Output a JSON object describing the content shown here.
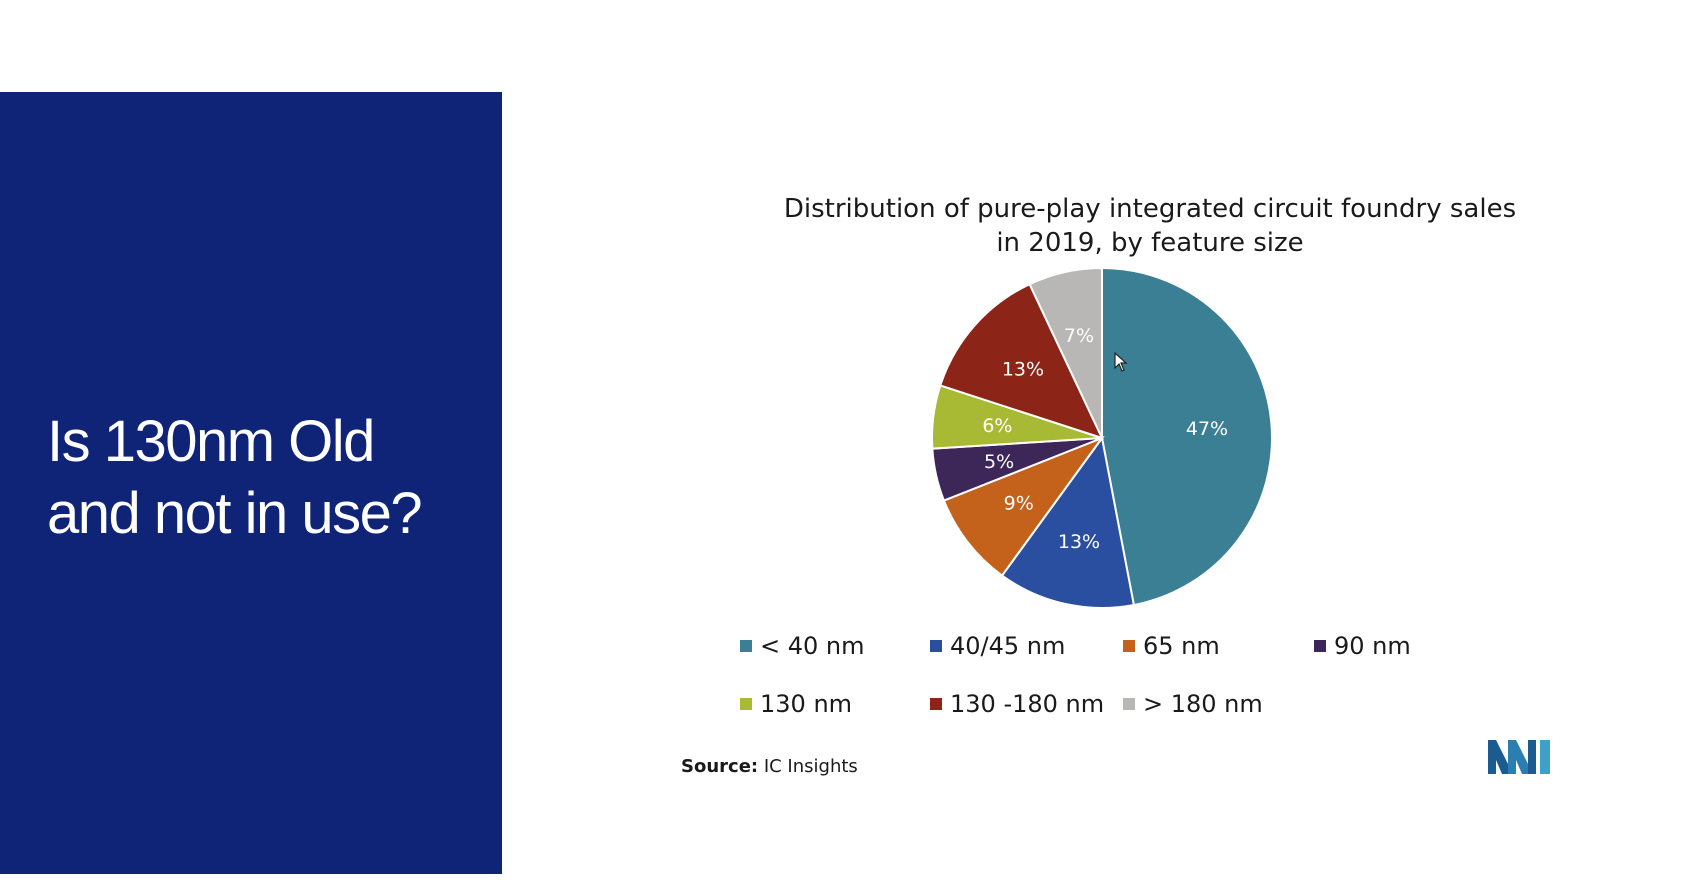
{
  "slide": {
    "title_line1": "Is 130nm Old",
    "title_line2": "and not in use?"
  },
  "chart_data": {
    "type": "pie",
    "title_line1": "Distribution of pure-play integrated circuit foundry sales",
    "title_line2": "in 2019, by feature size",
    "slices": [
      {
        "name": "< 40 nm",
        "value": 47,
        "label": "47%",
        "color": "#3a7f94"
      },
      {
        "name": "40/45 nm",
        "value": 13,
        "label": "13%",
        "color": "#2b4fa0"
      },
      {
        "name": "65 nm",
        "value": 9,
        "label": "9%",
        "color": "#c4621c"
      },
      {
        "name": "90 nm",
        "value": 5,
        "label": "5%",
        "color": "#3d2758"
      },
      {
        "name": "130 nm",
        "value": 6,
        "label": "6%",
        "color": "#a8b934"
      },
      {
        "name": "130 -180 nm",
        "value": 13,
        "label": "13%",
        "color": "#8c2417"
      },
      {
        "name": "> 180 nm",
        "value": 7,
        "label": "7%",
        "color": "#b9b6b6"
      }
    ],
    "legend_placement": "bottom"
  },
  "source": {
    "prefix": "Source:",
    "text": " IC Insights"
  },
  "icons": {
    "logo": "mordor-intelligence-logo",
    "cursor": "mouse-pointer-icon"
  }
}
